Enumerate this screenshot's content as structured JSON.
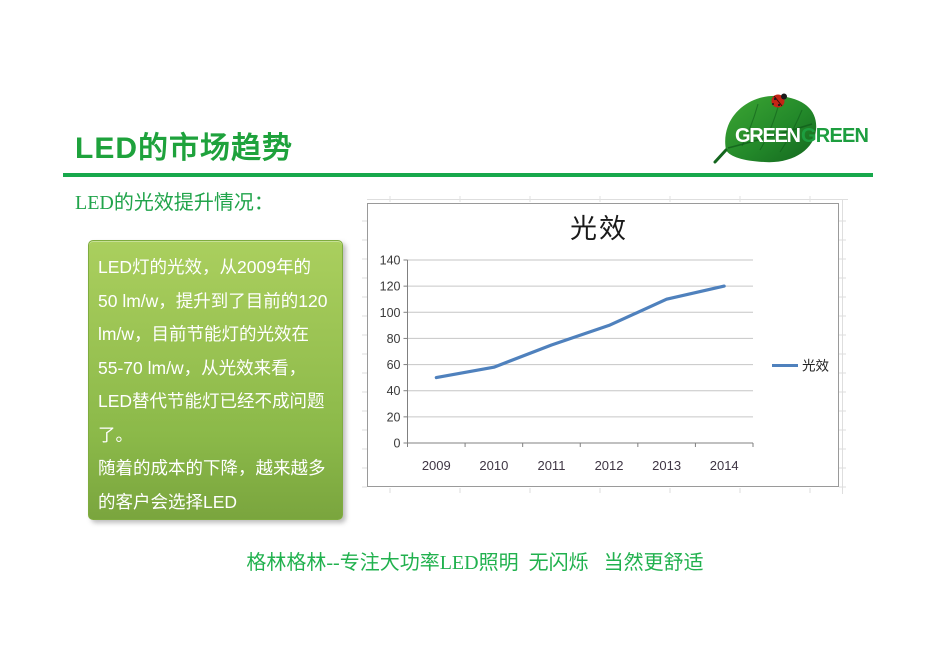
{
  "header": {
    "title": "LED的市场趋势",
    "subtitle": "LED的光效提升情况："
  },
  "logo": {
    "word1": "GREEN",
    "word2": "GREEN"
  },
  "infobox": {
    "paragraph1": "LED灯的光效，从2009年的50 lm/w，提升到了目前的120 lm/w，目前节能灯的光效在55-70 lm/w，从光效来看，LED替代节能灯已经不成问题了。",
    "paragraph2": "随着的成本的下降，越来越多的客户会选择LED"
  },
  "footer": {
    "slogan": "格林格林--专注大功率LED照明  无闪烁   当然更舒适"
  },
  "colors": {
    "title_green": "#1EA23C",
    "divider_green": "#17A84C",
    "body_green": "#21A44B",
    "box_gradient_top": "#AACF5E",
    "box_gradient_bottom": "#7AA53E",
    "chart_line_blue": "#4F81BD",
    "ladybug_red": "#C42415"
  },
  "chart_data": {
    "type": "line",
    "title": "光效",
    "categories": [
      "2009",
      "2010",
      "2011",
      "2012",
      "2013",
      "2014"
    ],
    "series": [
      {
        "name": "光效",
        "values": [
          50,
          58,
          75,
          90,
          110,
          120
        ],
        "color": "#4F81BD"
      }
    ],
    "xlabel": "",
    "ylabel": "",
    "ylim": [
      0,
      140
    ],
    "ytick_step": 20,
    "grid": true,
    "legend_position": "right"
  }
}
